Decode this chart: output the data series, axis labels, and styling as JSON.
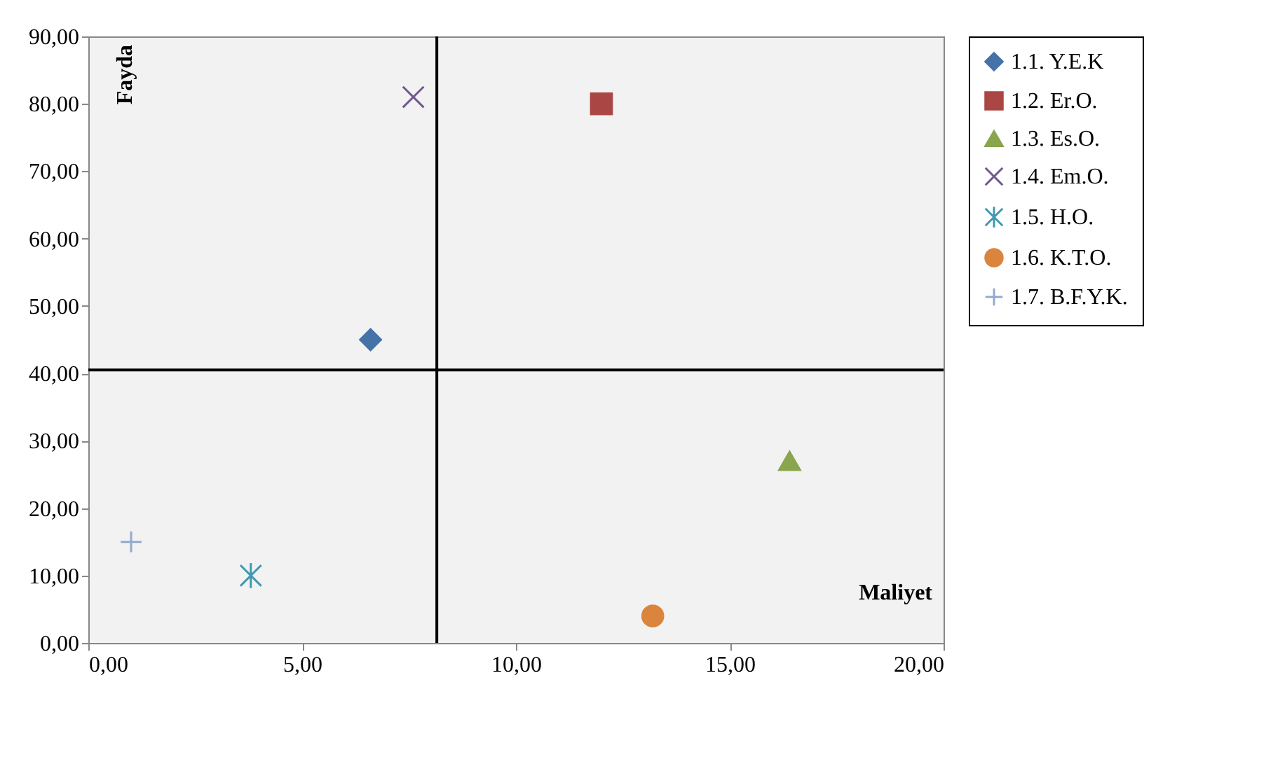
{
  "chart_data": {
    "type": "scatter",
    "xlabel": "Maliyet",
    "ylabel": "Fayda",
    "xlim": [
      0,
      20
    ],
    "xticks": [
      {
        "value": 0,
        "label": "0,00"
      },
      {
        "value": 5,
        "label": "5,00"
      },
      {
        "value": 10,
        "label": "10,00"
      },
      {
        "value": 15,
        "label": "15,00"
      },
      {
        "value": 20,
        "label": "20,00"
      }
    ],
    "ylim": [
      0,
      90
    ],
    "yticks": [
      {
        "value": 0,
        "label": "0,00"
      },
      {
        "value": 10,
        "label": "10,00"
      },
      {
        "value": 20,
        "label": "20,00"
      },
      {
        "value": 30,
        "label": "30,00"
      },
      {
        "value": 40,
        "label": "40,00"
      },
      {
        "value": 50,
        "label": "50,00"
      },
      {
        "value": 60,
        "label": "60,00"
      },
      {
        "value": 70,
        "label": "70,00"
      },
      {
        "value": 80,
        "label": "80,00"
      },
      {
        "value": 90,
        "label": "90,00"
      }
    ],
    "grid": false,
    "legend": "right",
    "ref_lines": [
      {
        "axis": "x",
        "value": 8.15,
        "color": "#000000"
      },
      {
        "axis": "y",
        "value": 40.5,
        "color": "#000000"
      }
    ],
    "series": [
      {
        "name": "1.1. Y.E.K",
        "color": "#4572a7",
        "marker": "diamond",
        "x": [
          6.6
        ],
        "values": [
          45
        ]
      },
      {
        "name": "1.2. Er.O.",
        "color": "#aa4643",
        "marker": "square",
        "x": [
          12
        ],
        "values": [
          80
        ]
      },
      {
        "name": "1.3. Es.O.",
        "color": "#89a54e",
        "marker": "triangle",
        "x": [
          16.4
        ],
        "values": [
          27
        ]
      },
      {
        "name": "1.4. Em.O.",
        "color": "#71588f",
        "marker": "cross",
        "x": [
          7.6
        ],
        "values": [
          81
        ]
      },
      {
        "name": "1.5. H.O.",
        "color": "#4198af",
        "x": [
          3.8
        ],
        "values": [
          10
        ]
      },
      {
        "name": "1.6. K.T.O.",
        "color": "#db843d",
        "marker": "circle",
        "x": [
          13.2
        ],
        "values": [
          4
        ]
      },
      {
        "name": "1.7. B.F.Y.K.",
        "color": "#93a9cf",
        "marker": "plus",
        "x": [
          1
        ],
        "values": [
          15
        ]
      }
    ]
  }
}
